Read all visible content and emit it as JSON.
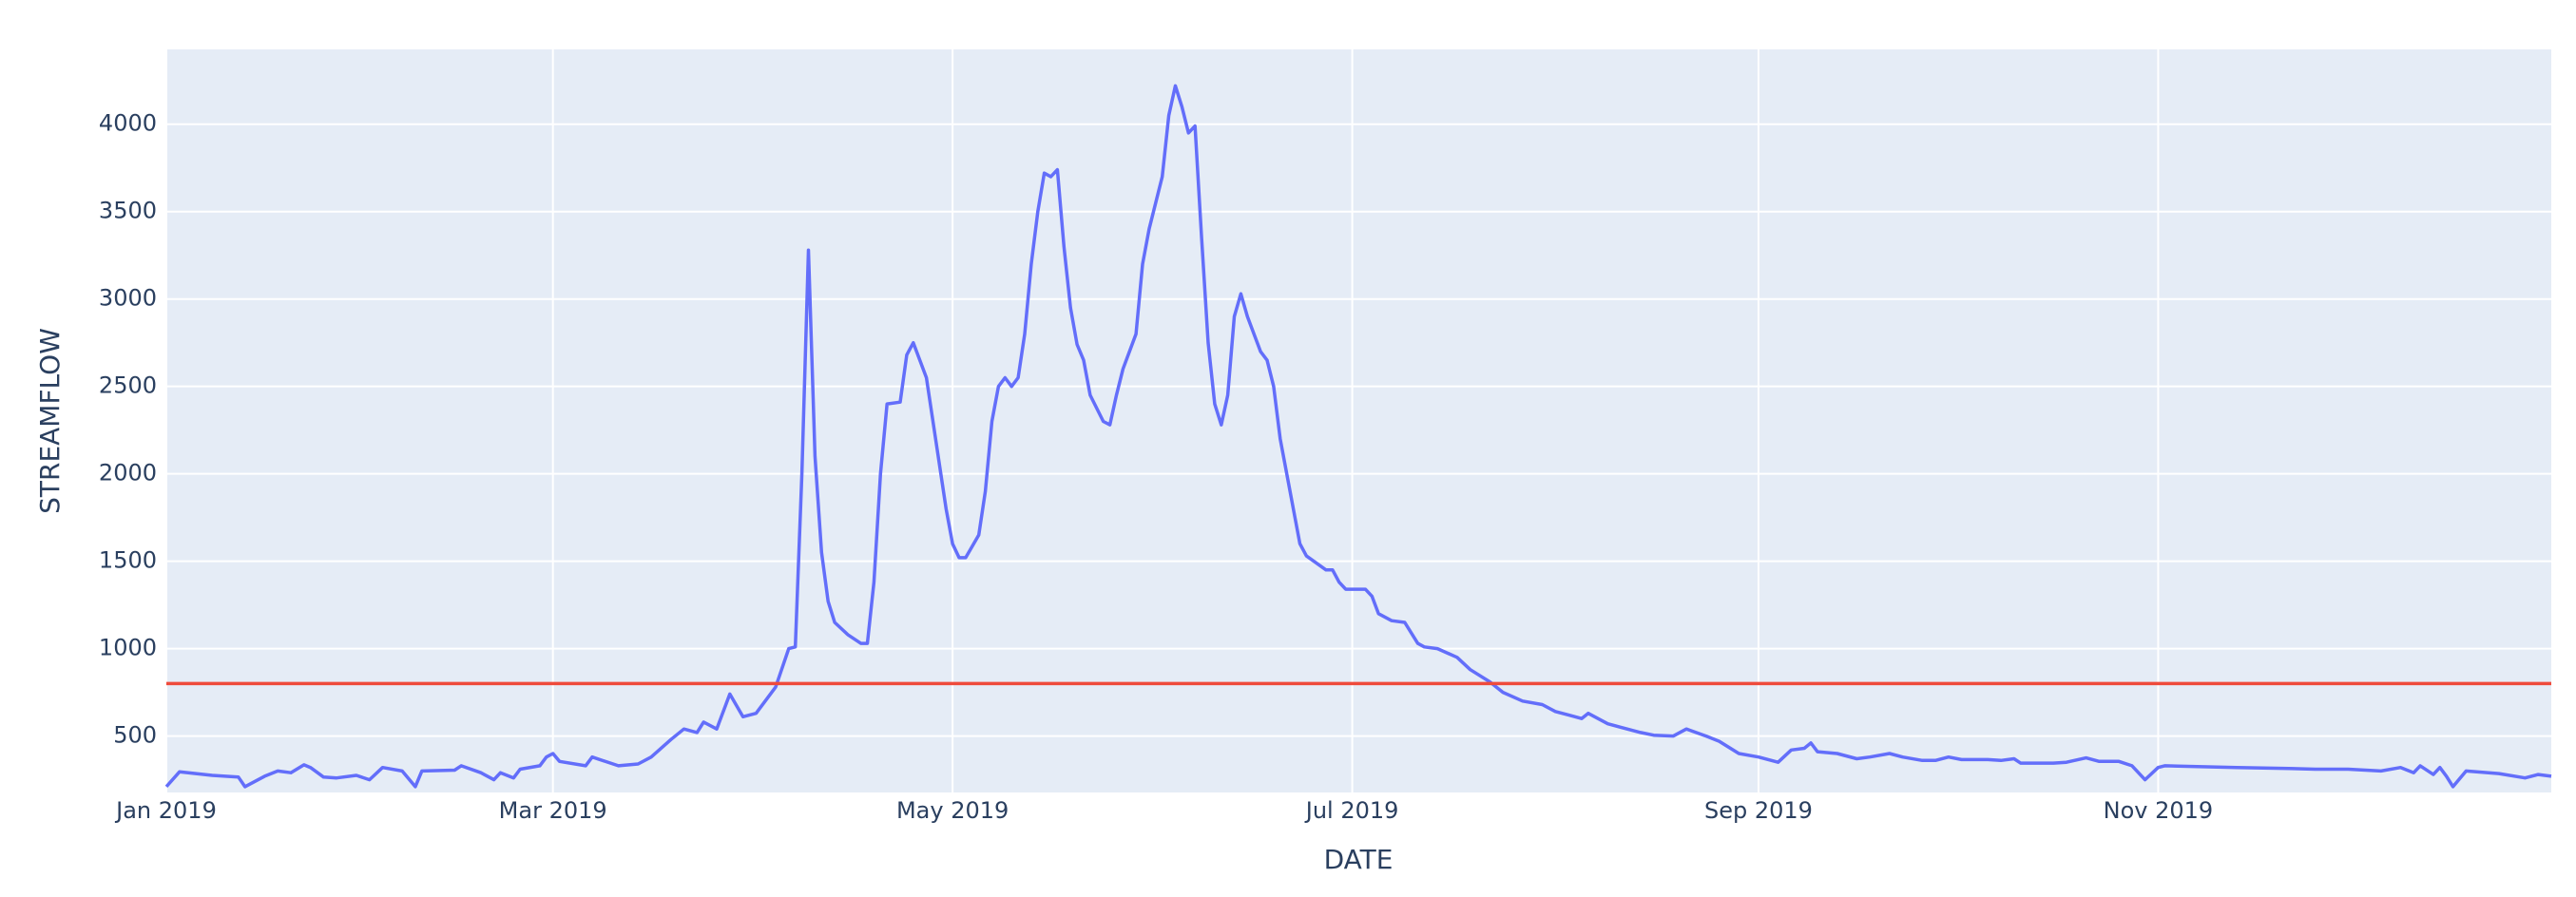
{
  "chart_data": {
    "type": "line",
    "xlabel": "DATE",
    "ylabel": "STREAMFLOW",
    "x": [
      "2019-01-01",
      "2019-01-03",
      "2019-01-08",
      "2019-01-12",
      "2019-01-13",
      "2019-01-16",
      "2019-01-18",
      "2019-01-20",
      "2019-01-22",
      "2019-01-23",
      "2019-01-25",
      "2019-01-27",
      "2019-01-30",
      "2019-02-01",
      "2019-02-03",
      "2019-02-06",
      "2019-02-08",
      "2019-02-09",
      "2019-02-14",
      "2019-02-15",
      "2019-02-18",
      "2019-02-20",
      "2019-02-21",
      "2019-02-23",
      "2019-02-24",
      "2019-02-27",
      "2019-02-28",
      "2019-03-01",
      "2019-03-02",
      "2019-03-06",
      "2019-03-07",
      "2019-03-11",
      "2019-03-14",
      "2019-03-16",
      "2019-03-19",
      "2019-03-21",
      "2019-03-23",
      "2019-03-24",
      "2019-03-26",
      "2019-03-28",
      "2019-03-30",
      "2019-04-01",
      "2019-04-04",
      "2019-04-06",
      "2019-04-07",
      "2019-04-08",
      "2019-04-09",
      "2019-04-10",
      "2019-04-11",
      "2019-04-12",
      "2019-04-13",
      "2019-04-15",
      "2019-04-17",
      "2019-04-18",
      "2019-04-19",
      "2019-04-20",
      "2019-04-21",
      "2019-04-23",
      "2019-04-24",
      "2019-04-25",
      "2019-04-27",
      "2019-04-28",
      "2019-04-30",
      "2019-05-01",
      "2019-05-02",
      "2019-05-03",
      "2019-05-05",
      "2019-05-06",
      "2019-05-07",
      "2019-05-08",
      "2019-05-09",
      "2019-05-10",
      "2019-05-11",
      "2019-05-12",
      "2019-05-13",
      "2019-05-14",
      "2019-05-15",
      "2019-05-16",
      "2019-05-17",
      "2019-05-18",
      "2019-05-19",
      "2019-05-20",
      "2019-05-21",
      "2019-05-22",
      "2019-05-24",
      "2019-05-25",
      "2019-05-26",
      "2019-05-27",
      "2019-05-29",
      "2019-05-30",
      "2019-05-31",
      "2019-06-02",
      "2019-06-03",
      "2019-06-04",
      "2019-06-05",
      "2019-06-06",
      "2019-06-07",
      "2019-06-08",
      "2019-06-09",
      "2019-06-10",
      "2019-06-11",
      "2019-06-12",
      "2019-06-13",
      "2019-06-14",
      "2019-06-15",
      "2019-06-17",
      "2019-06-18",
      "2019-06-19",
      "2019-06-20",
      "2019-06-22",
      "2019-06-23",
      "2019-06-24",
      "2019-06-27",
      "2019-06-28",
      "2019-06-29",
      "2019-06-30",
      "2019-07-03",
      "2019-07-04",
      "2019-07-05",
      "2019-07-07",
      "2019-07-09",
      "2019-07-11",
      "2019-07-12",
      "2019-07-14",
      "2019-07-17",
      "2019-07-19",
      "2019-07-22",
      "2019-07-24",
      "2019-07-27",
      "2019-07-30",
      "2019-08-01",
      "2019-08-04",
      "2019-08-05",
      "2019-08-06",
      "2019-08-09",
      "2019-08-11",
      "2019-08-14",
      "2019-08-16",
      "2019-08-19",
      "2019-08-21",
      "2019-08-24",
      "2019-08-26",
      "2019-08-29",
      "2019-09-01",
      "2019-09-04",
      "2019-09-06",
      "2019-09-08",
      "2019-09-09",
      "2019-09-10",
      "2019-09-13",
      "2019-09-16",
      "2019-09-18",
      "2019-09-21",
      "2019-09-23",
      "2019-09-26",
      "2019-09-28",
      "2019-09-30",
      "2019-10-02",
      "2019-10-06",
      "2019-10-08",
      "2019-10-10",
      "2019-10-11",
      "2019-10-16",
      "2019-10-18",
      "2019-10-21",
      "2019-10-23",
      "2019-10-26",
      "2019-10-28",
      "2019-10-30",
      "2019-11-01",
      "2019-11-02",
      "2019-11-13",
      "2019-11-20",
      "2019-11-25",
      "2019-11-30",
      "2019-12-05",
      "2019-12-08",
      "2019-12-10",
      "2019-12-11",
      "2019-12-13",
      "2019-12-14",
      "2019-12-15",
      "2019-12-16",
      "2019-12-18",
      "2019-12-23",
      "2019-12-27",
      "2019-12-29",
      "2019-12-31"
    ],
    "series": [
      {
        "name": "STREAMFLOW",
        "color": "#636efa",
        "values": [
          210,
          295,
          275,
          265,
          210,
          270,
          300,
          290,
          335,
          320,
          265,
          260,
          275,
          250,
          320,
          300,
          210,
          300,
          305,
          330,
          290,
          250,
          290,
          260,
          310,
          330,
          380,
          400,
          355,
          330,
          380,
          330,
          340,
          380,
          480,
          540,
          520,
          580,
          540,
          740,
          610,
          630,
          780,
          1000,
          1010,
          2000,
          3280,
          2100,
          1550,
          1270,
          1150,
          1080,
          1030,
          1030,
          1380,
          2000,
          2400,
          2410,
          2680,
          2750,
          2550,
          2300,
          1800,
          1600,
          1520,
          1520,
          1650,
          1900,
          2300,
          2500,
          2550,
          2500,
          2550,
          2800,
          3200,
          3500,
          3720,
          3700,
          3740,
          3300,
          2950,
          2740,
          2650,
          2450,
          2300,
          2280,
          2450,
          2600,
          2800,
          3200,
          3400,
          3700,
          4050,
          4220,
          4100,
          3950,
          3990,
          3350,
          2750,
          2400,
          2280,
          2450,
          2900,
          3030,
          2900,
          2700,
          2650,
          2500,
          2200,
          1800,
          1600,
          1530,
          1450,
          1450,
          1380,
          1340,
          1340,
          1300,
          1200,
          1160,
          1150,
          1030,
          1010,
          1000,
          950,
          880,
          810,
          750,
          700,
          680,
          640,
          610,
          600,
          630,
          570,
          550,
          520,
          505,
          500,
          540,
          500,
          470,
          400,
          380,
          350,
          420,
          430,
          460,
          410,
          400,
          370,
          380,
          400,
          380,
          360,
          360,
          380,
          365,
          365,
          360,
          370,
          345,
          345,
          350,
          375,
          355,
          355,
          330,
          250,
          320,
          330,
          320,
          315,
          310,
          310,
          300,
          320,
          290,
          330,
          280,
          320,
          270,
          210,
          300,
          285,
          260,
          280,
          270
        ]
      }
    ],
    "threshold": {
      "value": 800,
      "color": "#ef4b3c"
    },
    "xlim": [
      "2019-01-01",
      "2019-12-31"
    ],
    "xticks": [
      {
        "value": "2019-01-01",
        "label": "Jan 2019"
      },
      {
        "value": "2019-03-01",
        "label": "Mar 2019"
      },
      {
        "value": "2019-05-01",
        "label": "May 2019"
      },
      {
        "value": "2019-07-01",
        "label": "Jul 2019"
      },
      {
        "value": "2019-09-01",
        "label": "Sep 2019"
      },
      {
        "value": "2019-11-01",
        "label": "Nov 2019"
      }
    ],
    "ylim": [
      177,
      4428
    ],
    "yticks": [
      500,
      1000,
      1500,
      2000,
      2500,
      3000,
      3500,
      4000
    ],
    "grid": true,
    "background": "#e5ecf6"
  }
}
